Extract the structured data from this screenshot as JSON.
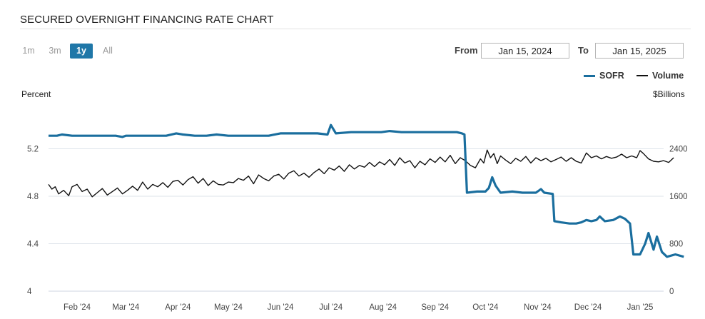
{
  "header": {
    "title": "SECURED OVERNIGHT FINANCING RATE CHART"
  },
  "range_buttons": [
    {
      "label": "1m",
      "active": false
    },
    {
      "label": "3m",
      "active": false
    },
    {
      "label": "1y",
      "active": true
    },
    {
      "label": "All",
      "active": false
    }
  ],
  "date_range": {
    "from_label": "From",
    "from_value": "Jan 15, 2024",
    "to_label": "To",
    "to_value": "Jan 15, 2025"
  },
  "chart_data": {
    "type": "line",
    "left_axis_title": "Percent",
    "right_axis_title": "$Billions",
    "left_ticks": [
      "5.2",
      "4.8",
      "4.4",
      "4"
    ],
    "left_tick_values": [
      5.2,
      4.8,
      4.4,
      4.0
    ],
    "right_ticks": [
      "2400",
      "1600",
      "800",
      "0"
    ],
    "right_tick_values": [
      2400,
      1600,
      800,
      0
    ],
    "ylim_left": [
      4.0,
      5.6
    ],
    "ylim_right": [
      0,
      3200
    ],
    "x_labels": [
      "Feb '24",
      "Mar '24",
      "Apr '24",
      "May '24",
      "Jun '24",
      "Jul '24",
      "Aug '24",
      "Sep '24",
      "Oct '24",
      "Nov '24",
      "Dec '24",
      "Jan '25"
    ],
    "x_label_days": [
      17,
      46,
      77,
      107,
      138,
      168,
      199,
      230,
      260,
      291,
      321,
      352
    ],
    "x_range_days": [
      0,
      366
    ],
    "grid": true,
    "legend_position": "top-right",
    "series": [
      {
        "name": "SOFR",
        "color": "#1a6e9e",
        "axis": "left",
        "points": [
          [
            0,
            5.31
          ],
          [
            5,
            5.31
          ],
          [
            8,
            5.32
          ],
          [
            14,
            5.31
          ],
          [
            20,
            5.31
          ],
          [
            30,
            5.31
          ],
          [
            40,
            5.31
          ],
          [
            44,
            5.3
          ],
          [
            46,
            5.31
          ],
          [
            52,
            5.31
          ],
          [
            60,
            5.31
          ],
          [
            70,
            5.31
          ],
          [
            76,
            5.33
          ],
          [
            80,
            5.32
          ],
          [
            87,
            5.31
          ],
          [
            94,
            5.31
          ],
          [
            100,
            5.32
          ],
          [
            107,
            5.31
          ],
          [
            115,
            5.31
          ],
          [
            123,
            5.31
          ],
          [
            131,
            5.31
          ],
          [
            138,
            5.33
          ],
          [
            144,
            5.33
          ],
          [
            152,
            5.33
          ],
          [
            160,
            5.33
          ],
          [
            166,
            5.32
          ],
          [
            168,
            5.4
          ],
          [
            171,
            5.33
          ],
          [
            180,
            5.34
          ],
          [
            190,
            5.34
          ],
          [
            198,
            5.34
          ],
          [
            203,
            5.35
          ],
          [
            210,
            5.34
          ],
          [
            220,
            5.34
          ],
          [
            228,
            5.34
          ],
          [
            235,
            5.34
          ],
          [
            240,
            5.34
          ],
          [
            243,
            5.34
          ],
          [
            246,
            5.33
          ],
          [
            247.5,
            5.32
          ],
          [
            249,
            4.83
          ],
          [
            255,
            4.84
          ],
          [
            258,
            4.84
          ],
          [
            260,
            4.84
          ],
          [
            262,
            4.87
          ],
          [
            264,
            4.96
          ],
          [
            266,
            4.89
          ],
          [
            269,
            4.83
          ],
          [
            276,
            4.84
          ],
          [
            282,
            4.83
          ],
          [
            290,
            4.83
          ],
          [
            293,
            4.86
          ],
          [
            295,
            4.83
          ],
          [
            300,
            4.82
          ],
          [
            301,
            4.59
          ],
          [
            305,
            4.58
          ],
          [
            310,
            4.57
          ],
          [
            314,
            4.57
          ],
          [
            317,
            4.58
          ],
          [
            320,
            4.6
          ],
          [
            323,
            4.59
          ],
          [
            326,
            4.6
          ],
          [
            328,
            4.63
          ],
          [
            331,
            4.59
          ],
          [
            336,
            4.6
          ],
          [
            340,
            4.63
          ],
          [
            343,
            4.61
          ],
          [
            346,
            4.57
          ],
          [
            348,
            4.31
          ],
          [
            352,
            4.31
          ],
          [
            355,
            4.4
          ],
          [
            357,
            4.49
          ],
          [
            360,
            4.35
          ],
          [
            362,
            4.46
          ],
          [
            365,
            4.33
          ],
          [
            368,
            4.29
          ],
          [
            373,
            4.31
          ],
          [
            378,
            4.29
          ]
        ]
      },
      {
        "name": "Volume",
        "color": "#111111",
        "axis": "right",
        "points": [
          [
            0,
            1800
          ],
          [
            2,
            1720
          ],
          [
            4,
            1760
          ],
          [
            6,
            1640
          ],
          [
            9,
            1700
          ],
          [
            12,
            1610
          ],
          [
            14,
            1760
          ],
          [
            17,
            1800
          ],
          [
            20,
            1680
          ],
          [
            23,
            1720
          ],
          [
            26,
            1590
          ],
          [
            29,
            1660
          ],
          [
            32,
            1730
          ],
          [
            35,
            1620
          ],
          [
            38,
            1680
          ],
          [
            41,
            1740
          ],
          [
            44,
            1640
          ],
          [
            47,
            1700
          ],
          [
            50,
            1770
          ],
          [
            53,
            1700
          ],
          [
            56,
            1840
          ],
          [
            59,
            1720
          ],
          [
            62,
            1800
          ],
          [
            65,
            1760
          ],
          [
            68,
            1830
          ],
          [
            71,
            1750
          ],
          [
            74,
            1850
          ],
          [
            77,
            1870
          ],
          [
            80,
            1790
          ],
          [
            83,
            1880
          ],
          [
            86,
            1930
          ],
          [
            89,
            1820
          ],
          [
            92,
            1900
          ],
          [
            95,
            1780
          ],
          [
            98,
            1860
          ],
          [
            101,
            1800
          ],
          [
            104,
            1790
          ],
          [
            107,
            1840
          ],
          [
            110,
            1830
          ],
          [
            113,
            1900
          ],
          [
            116,
            1870
          ],
          [
            119,
            1940
          ],
          [
            122,
            1810
          ],
          [
            125,
            1960
          ],
          [
            128,
            1900
          ],
          [
            131,
            1860
          ],
          [
            134,
            1940
          ],
          [
            137,
            1970
          ],
          [
            140,
            1890
          ],
          [
            143,
            1990
          ],
          [
            146,
            2030
          ],
          [
            149,
            1940
          ],
          [
            152,
            1990
          ],
          [
            155,
            1920
          ],
          [
            158,
            2000
          ],
          [
            161,
            2060
          ],
          [
            164,
            1980
          ],
          [
            167,
            2080
          ],
          [
            170,
            2040
          ],
          [
            173,
            2110
          ],
          [
            176,
            2020
          ],
          [
            179,
            2130
          ],
          [
            182,
            2060
          ],
          [
            185,
            2120
          ],
          [
            188,
            2090
          ],
          [
            191,
            2170
          ],
          [
            194,
            2100
          ],
          [
            197,
            2180
          ],
          [
            200,
            2130
          ],
          [
            203,
            2220
          ],
          [
            206,
            2120
          ],
          [
            209,
            2250
          ],
          [
            212,
            2160
          ],
          [
            215,
            2200
          ],
          [
            218,
            2080
          ],
          [
            221,
            2190
          ],
          [
            224,
            2130
          ],
          [
            227,
            2230
          ],
          [
            230,
            2170
          ],
          [
            233,
            2260
          ],
          [
            236,
            2180
          ],
          [
            239,
            2290
          ],
          [
            242,
            2150
          ],
          [
            245,
            2250
          ],
          [
            248,
            2200
          ],
          [
            251,
            2120
          ],
          [
            254,
            2080
          ],
          [
            257,
            2230
          ],
          [
            259,
            2160
          ],
          [
            261,
            2380
          ],
          [
            263,
            2250
          ],
          [
            265,
            2320
          ],
          [
            267,
            2150
          ],
          [
            269,
            2280
          ],
          [
            272,
            2210
          ],
          [
            275,
            2150
          ],
          [
            278,
            2240
          ],
          [
            281,
            2190
          ],
          [
            284,
            2270
          ],
          [
            287,
            2160
          ],
          [
            290,
            2250
          ],
          [
            293,
            2200
          ],
          [
            296,
            2240
          ],
          [
            299,
            2180
          ],
          [
            302,
            2220
          ],
          [
            305,
            2260
          ],
          [
            308,
            2190
          ],
          [
            311,
            2250
          ],
          [
            314,
            2190
          ],
          [
            317,
            2160
          ],
          [
            320,
            2330
          ],
          [
            323,
            2250
          ],
          [
            326,
            2280
          ],
          [
            329,
            2230
          ],
          [
            332,
            2270
          ],
          [
            335,
            2240
          ],
          [
            338,
            2260
          ],
          [
            341,
            2310
          ],
          [
            344,
            2250
          ],
          [
            347,
            2280
          ],
          [
            350,
            2250
          ],
          [
            352,
            2370
          ],
          [
            354,
            2320
          ],
          [
            357,
            2230
          ],
          [
            360,
            2190
          ],
          [
            363,
            2180
          ],
          [
            366,
            2200
          ],
          [
            369,
            2170
          ],
          [
            372,
            2250
          ]
        ]
      }
    ]
  }
}
